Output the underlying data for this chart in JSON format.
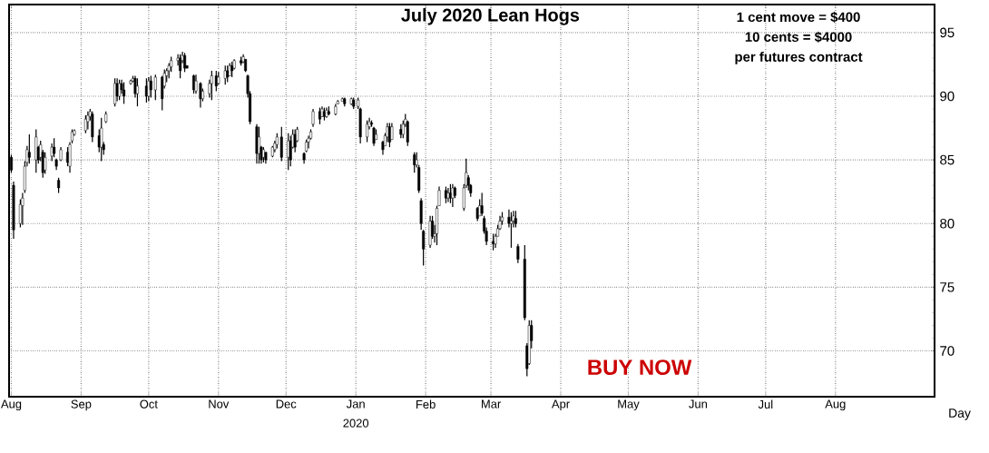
{
  "chart_data": {
    "type": "candlestick",
    "title": "July 2020 Lean Hogs",
    "xlabel": "Day",
    "annotations": [
      "1 cent move = $400",
      "10 cents = $4000",
      "per futures contract",
      "BUY NOW",
      "2020"
    ],
    "x": [
      "2019-08-01",
      "2019-08-02",
      "2019-08-05",
      "2019-08-06",
      "2019-08-07",
      "2019-08-08",
      "2019-08-09",
      "2019-08-12",
      "2019-08-13",
      "2019-08-14",
      "2019-08-15",
      "2019-08-16",
      "2019-08-19",
      "2019-08-20",
      "2019-08-21",
      "2019-08-22",
      "2019-08-23",
      "2019-08-26",
      "2019-08-27",
      "2019-08-28",
      "2019-08-29",
      "2019-09-03",
      "2019-09-04",
      "2019-09-05",
      "2019-09-06",
      "2019-09-09",
      "2019-09-10",
      "2019-09-11",
      "2019-09-12",
      "2019-09-16",
      "2019-09-17",
      "2019-09-18",
      "2019-09-19",
      "2019-09-20",
      "2019-09-23",
      "2019-09-24",
      "2019-09-25",
      "2019-09-26",
      "2019-09-30",
      "2019-10-01",
      "2019-10-02",
      "2019-10-04",
      "2019-10-07",
      "2019-10-08",
      "2019-10-09",
      "2019-10-10",
      "2019-10-11",
      "2019-10-14",
      "2019-10-15",
      "2019-10-16",
      "2019-10-17",
      "2019-10-18",
      "2019-10-21",
      "2019-10-22",
      "2019-10-24",
      "2019-10-25",
      "2019-10-28",
      "2019-10-29",
      "2019-10-31",
      "2019-11-01",
      "2019-11-04",
      "2019-11-05",
      "2019-11-06",
      "2019-11-07",
      "2019-11-08",
      "2019-11-11",
      "2019-11-12",
      "2019-11-13",
      "2019-11-14",
      "2019-11-15",
      "2019-11-18",
      "2019-11-19",
      "2019-11-20",
      "2019-11-21",
      "2019-11-22",
      "2019-11-25",
      "2019-11-26",
      "2019-11-27",
      "2019-11-29",
      "2019-12-02",
      "2019-12-03",
      "2019-12-04",
      "2019-12-05",
      "2019-12-06",
      "2019-12-09",
      "2019-12-10",
      "2019-12-11",
      "2019-12-12",
      "2019-12-13",
      "2019-12-16",
      "2019-12-17",
      "2019-12-18",
      "2019-12-19",
      "2019-12-20",
      "2019-12-23",
      "2019-12-24",
      "2019-12-26",
      "2019-12-27",
      "2019-12-30",
      "2019-12-31",
      "2020-01-02",
      "2020-01-03",
      "2020-01-06",
      "2020-01-07",
      "2020-01-08",
      "2020-01-09",
      "2020-01-10",
      "2020-01-13",
      "2020-01-14",
      "2020-01-15",
      "2020-01-16",
      "2020-01-17",
      "2020-01-21",
      "2020-01-22",
      "2020-01-23",
      "2020-01-24",
      "2020-01-27",
      "2020-01-28",
      "2020-01-29",
      "2020-01-30",
      "2020-01-31",
      "2020-02-03",
      "2020-02-04",
      "2020-02-05",
      "2020-02-06",
      "2020-02-07",
      "2020-02-10",
      "2020-02-11",
      "2020-02-12",
      "2020-02-13",
      "2020-02-14",
      "2020-02-18",
      "2020-02-19",
      "2020-02-20",
      "2020-02-21",
      "2020-02-24",
      "2020-02-25",
      "2020-02-26",
      "2020-02-27",
      "2020-02-28",
      "2020-03-02",
      "2020-03-03",
      "2020-03-04",
      "2020-03-05",
      "2020-03-06",
      "2020-03-09",
      "2020-03-10",
      "2020-03-11",
      "2020-03-12",
      "2020-03-13",
      "2020-03-16",
      "2020-03-17",
      "2020-03-18",
      "2020-03-19"
    ],
    "ohlc": [
      [
        85.2,
        85.4,
        84.0,
        84.2
      ],
      [
        83.0,
        83.3,
        78.8,
        79.5
      ],
      [
        80.0,
        81.9,
        79.7,
        81.5
      ],
      [
        81.4,
        82.4,
        79.9,
        82.0
      ],
      [
        82.6,
        84.9,
        82.4,
        84.5
      ],
      [
        84.8,
        86.1,
        84.5,
        85.8
      ],
      [
        85.6,
        87.0,
        84.7,
        85.2
      ],
      [
        85.0,
        87.4,
        84.0,
        86.8
      ],
      [
        86.0,
        86.1,
        84.7,
        85.0
      ],
      [
        85.2,
        86.5,
        84.9,
        86.2
      ],
      [
        85.6,
        85.8,
        83.6,
        84.0
      ],
      [
        84.2,
        85.6,
        83.9,
        85.2
      ],
      [
        85.3,
        86.3,
        84.9,
        86.0
      ],
      [
        86.0,
        86.7,
        85.2,
        85.5
      ],
      [
        85.0,
        85.1,
        84.2,
        84.5
      ],
      [
        83.4,
        83.6,
        82.4,
        82.8
      ],
      [
        85.0,
        86.0,
        84.9,
        85.8
      ],
      [
        85.6,
        86.0,
        84.5,
        84.8
      ],
      [
        84.5,
        86.4,
        84.0,
        86.2
      ],
      [
        86.5,
        87.4,
        86.3,
        87.2
      ],
      [
        87.0,
        87.4,
        86.9,
        87.3
      ],
      [
        87.3,
        88.5,
        87.1,
        88.2
      ],
      [
        88.0,
        88.8,
        87.4,
        88.5
      ],
      [
        88.4,
        89.0,
        88.1,
        88.8
      ],
      [
        88.6,
        88.8,
        86.4,
        86.8
      ],
      [
        86.9,
        87.4,
        85.6,
        86.0
      ],
      [
        86.0,
        88.3,
        84.9,
        87.5
      ],
      [
        86.2,
        86.4,
        85.4,
        85.8
      ],
      [
        88.0,
        88.8,
        87.9,
        88.6
      ],
      [
        89.4,
        91.4,
        89.2,
        91.0
      ],
      [
        91.0,
        91.4,
        89.6,
        90.0
      ],
      [
        90.0,
        91.3,
        89.7,
        91.0
      ],
      [
        91.0,
        91.3,
        90.2,
        90.5
      ],
      [
        90.5,
        91.1,
        89.4,
        90.0
      ],
      [
        91.0,
        91.3,
        90.9,
        91.2
      ],
      [
        91.2,
        91.6,
        91.1,
        91.4
      ],
      [
        91.4,
        91.6,
        89.9,
        90.2
      ],
      [
        90.2,
        91.4,
        89.2,
        90.8
      ],
      [
        90.8,
        91.4,
        89.5,
        90.0
      ],
      [
        90.0,
        91.5,
        89.6,
        91.2
      ],
      [
        91.2,
        91.6,
        89.9,
        90.5
      ],
      [
        90.5,
        91.7,
        89.7,
        91.5
      ],
      [
        91.5,
        91.6,
        88.9,
        89.8
      ],
      [
        90.8,
        92.1,
        90.6,
        91.8
      ],
      [
        91.6,
        92.2,
        91.1,
        92.0
      ],
      [
        92.0,
        92.6,
        91.4,
        92.4
      ],
      [
        92.3,
        93.1,
        91.9,
        92.8
      ],
      [
        92.8,
        93.3,
        92.4,
        93.0
      ],
      [
        93.0,
        93.3,
        91.4,
        92.0
      ],
      [
        92.8,
        93.5,
        92.6,
        93.2
      ],
      [
        93.2,
        93.4,
        91.9,
        92.2
      ],
      [
        92.4,
        92.4,
        92.2,
        92.2
      ],
      [
        91.6,
        91.7,
        90.2,
        90.5
      ],
      [
        90.4,
        91.7,
        90.2,
        91.2
      ],
      [
        91.0,
        91.1,
        89.1,
        89.8
      ],
      [
        89.8,
        90.6,
        89.6,
        90.4
      ],
      [
        90.2,
        91.3,
        89.9,
        91.0
      ],
      [
        91.0,
        92.0,
        89.7,
        91.6
      ],
      [
        91.6,
        92.0,
        90.4,
        90.8
      ],
      [
        91.0,
        91.9,
        90.9,
        91.5
      ],
      [
        91.4,
        92.4,
        90.9,
        92.0
      ],
      [
        92.0,
        92.4,
        91.1,
        91.5
      ],
      [
        91.6,
        92.6,
        91.6,
        92.4
      ],
      [
        92.4,
        92.7,
        91.5,
        92.0
      ],
      [
        92.2,
        92.9,
        92.1,
        92.8
      ],
      [
        92.8,
        93.1,
        92.4,
        92.6
      ],
      [
        92.7,
        93.3,
        92.6,
        93.1
      ],
      [
        92.9,
        92.9,
        91.9,
        92.0
      ],
      [
        91.6,
        91.7,
        89.9,
        90.2
      ],
      [
        90.2,
        90.4,
        87.8,
        88.0
      ],
      [
        87.6,
        87.8,
        84.7,
        85.5
      ],
      [
        85.5,
        87.6,
        84.7,
        86.8
      ],
      [
        86.0,
        86.1,
        84.7,
        85.0
      ],
      [
        85.2,
        86.0,
        84.8,
        85.8
      ],
      [
        85.6,
        85.6,
        84.7,
        85.0
      ],
      [
        85.3,
        86.1,
        85.2,
        86.0
      ],
      [
        85.8,
        86.5,
        85.6,
        86.3
      ],
      [
        86.2,
        87.1,
        85.9,
        86.8
      ],
      [
        86.8,
        87.6,
        84.9,
        85.2
      ],
      [
        85.2,
        87.1,
        84.2,
        86.5
      ],
      [
        86.5,
        86.9,
        84.5,
        85.0
      ],
      [
        86.0,
        87.4,
        85.9,
        87.0
      ],
      [
        87.0,
        87.4,
        85.6,
        86.0
      ],
      [
        86.5,
        87.6,
        86.4,
        87.4
      ],
      [
        85.5,
        85.6,
        84.7,
        85.0
      ],
      [
        85.7,
        86.6,
        85.6,
        86.4
      ],
      [
        86.4,
        86.9,
        85.9,
        86.7
      ],
      [
        86.7,
        87.4,
        86.6,
        87.2
      ],
      [
        87.8,
        89.0,
        87.6,
        88.8
      ],
      [
        88.8,
        89.1,
        87.8,
        88.2
      ],
      [
        88.4,
        89.2,
        88.4,
        89.0
      ],
      [
        88.8,
        89.1,
        88.1,
        88.4
      ],
      [
        88.4,
        89.1,
        88.3,
        88.9
      ],
      [
        88.8,
        89.2,
        88.5,
        88.6
      ],
      [
        88.6,
        89.4,
        88.5,
        89.2
      ],
      [
        89.4,
        89.7,
        89.4,
        89.6
      ],
      [
        89.6,
        89.9,
        89.6,
        89.8
      ],
      [
        89.8,
        89.9,
        89.2,
        89.4
      ],
      [
        89.4,
        89.9,
        89.3,
        89.8
      ],
      [
        89.7,
        89.9,
        89.0,
        89.2
      ],
      [
        89.2,
        89.9,
        89.0,
        89.7
      ],
      [
        89.0,
        89.1,
        86.3,
        86.8
      ],
      [
        86.8,
        88.1,
        86.4,
        87.8
      ],
      [
        87.6,
        88.3,
        87.4,
        88.0
      ],
      [
        87.9,
        88.1,
        87.6,
        87.8
      ],
      [
        87.5,
        87.6,
        86.1,
        86.3
      ],
      [
        86.6,
        87.4,
        86.6,
        87.0
      ],
      [
        86.4,
        86.5,
        85.4,
        85.8
      ],
      [
        86.1,
        87.1,
        86.1,
        86.9
      ],
      [
        86.8,
        87.9,
        86.4,
        87.6
      ],
      [
        87.6,
        87.9,
        86.0,
        86.4
      ],
      [
        86.6,
        87.9,
        86.6,
        87.6
      ],
      [
        87.4,
        87.8,
        86.7,
        87.0
      ],
      [
        87.0,
        88.1,
        86.7,
        87.8
      ],
      [
        87.8,
        88.6,
        87.6,
        88.2
      ],
      [
        88.0,
        88.1,
        86.1,
        86.4
      ],
      [
        85.4,
        85.6,
        84.0,
        84.6
      ],
      [
        84.6,
        85.6,
        84.4,
        85.0
      ],
      [
        84.4,
        84.6,
        82.4,
        82.6
      ],
      [
        81.8,
        82.0,
        79.5,
        80.0
      ],
      [
        79.4,
        79.5,
        76.7,
        78.0
      ],
      [
        78.3,
        80.6,
        78.1,
        80.2
      ],
      [
        80.2,
        80.6,
        78.8,
        79.0
      ],
      [
        79.0,
        79.9,
        78.5,
        79.2
      ],
      [
        79.2,
        81.4,
        78.3,
        81.2
      ],
      [
        81.4,
        82.9,
        81.4,
        82.6
      ],
      [
        82.6,
        82.9,
        81.6,
        82.0
      ],
      [
        82.0,
        82.8,
        81.7,
        82.4
      ],
      [
        82.4,
        83.1,
        81.6,
        82.0
      ],
      [
        82.0,
        83.1,
        81.3,
        82.8
      ],
      [
        82.8,
        82.9,
        82.0,
        82.2
      ],
      [
        81.2,
        83.1,
        81.0,
        82.8
      ],
      [
        83.0,
        85.1,
        82.8,
        84.0
      ],
      [
        83.6,
        83.8,
        82.6,
        83.0
      ],
      [
        83.0,
        83.1,
        82.1,
        82.4
      ],
      [
        81.2,
        81.3,
        80.2,
        80.4
      ],
      [
        80.6,
        81.9,
        80.6,
        81.4
      ],
      [
        81.4,
        82.4,
        80.6,
        80.8
      ],
      [
        80.4,
        80.6,
        79.2,
        79.4
      ],
      [
        79.4,
        79.7,
        78.3,
        78.6
      ],
      [
        78.6,
        79.2,
        77.9,
        78.4
      ],
      [
        78.4,
        79.2,
        78.1,
        79.0
      ],
      [
        79.0,
        79.9,
        79.0,
        79.6
      ],
      [
        79.6,
        80.6,
        79.5,
        80.2
      ],
      [
        80.2,
        80.9,
        79.9,
        80.5
      ],
      [
        80.5,
        81.1,
        79.7,
        80.0
      ],
      [
        80.0,
        80.9,
        78.1,
        80.2
      ],
      [
        80.2,
        81.0,
        79.7,
        80.6
      ],
      [
        80.4,
        81.0,
        79.7,
        80.0
      ],
      [
        78.2,
        78.4,
        76.9,
        77.2
      ],
      [
        77.2,
        78.3,
        72.4,
        72.6
      ],
      [
        70.4,
        70.6,
        68.0,
        68.6
      ],
      [
        69.0,
        72.4,
        68.9,
        72.0
      ],
      [
        72.0,
        72.4,
        70.2,
        70.8
      ]
    ],
    "xlim": [
      "2019-07-31",
      "2020-09-14"
    ],
    "xticks": [
      {
        "value": "2019-08-01",
        "label": "Aug"
      },
      {
        "value": "2019-09-01",
        "label": "Sep"
      },
      {
        "value": "2019-10-01",
        "label": "Oct"
      },
      {
        "value": "2019-11-01",
        "label": "Nov"
      },
      {
        "value": "2019-12-01",
        "label": "Dec"
      },
      {
        "value": "2020-01-01",
        "label": "Jan"
      },
      {
        "value": "2020-02-01",
        "label": "Feb"
      },
      {
        "value": "2020-03-01",
        "label": "Mar"
      },
      {
        "value": "2020-04-01",
        "label": "Apr"
      },
      {
        "value": "2020-05-01",
        "label": "May"
      },
      {
        "value": "2020-06-01",
        "label": "Jun"
      },
      {
        "value": "2020-07-01",
        "label": "Jul"
      },
      {
        "value": "2020-08-01",
        "label": "Aug"
      }
    ],
    "ylim": [
      66.4,
      97.2
    ],
    "yticks": [
      70,
      75,
      80,
      85,
      90,
      95
    ],
    "grid": true
  }
}
